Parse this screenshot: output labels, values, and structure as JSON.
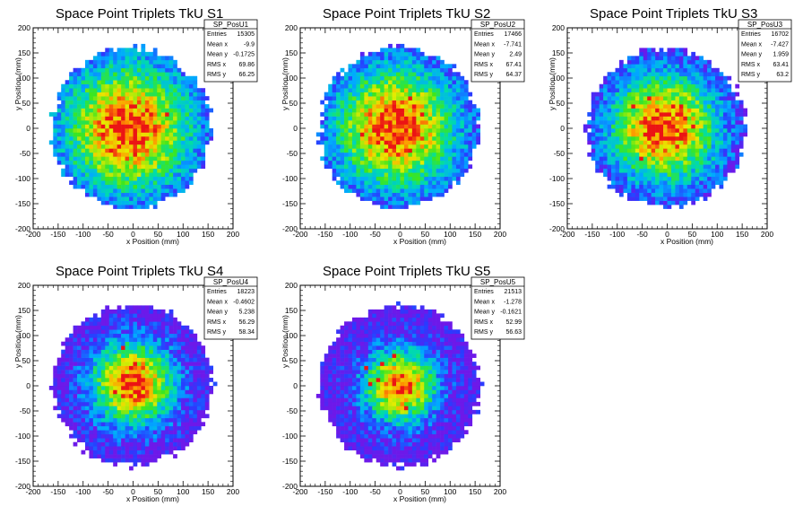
{
  "chart_data": [
    {
      "type": "heatmap",
      "id": "p1",
      "title": "Space Point Triplets TkU S1",
      "xlabel": "x Position (mm)",
      "ylabel": "y Position (mm)",
      "xlim": [
        -200,
        200
      ],
      "ylim": [
        -200,
        200
      ],
      "xticks": [
        -200,
        -150,
        -100,
        -50,
        0,
        50,
        100,
        150,
        200
      ],
      "yticks": [
        -200,
        -150,
        -100,
        -50,
        0,
        50,
        100,
        150,
        200
      ],
      "stats": {
        "name": "SP_PosU1",
        "rows": [
          [
            "Entries",
            "15305"
          ],
          [
            "Mean x",
            "-9.9"
          ],
          [
            "Mean y",
            "-0.1725"
          ],
          [
            "RMS x",
            "69.86"
          ],
          [
            "RMS y",
            "66.25"
          ]
        ]
      },
      "distribution": {
        "center_x": -10,
        "center_y": 0,
        "radius": 160,
        "sigma": 95
      },
      "grid": false,
      "colormap": "rainbow"
    },
    {
      "type": "heatmap",
      "id": "p2",
      "title": "Space Point Triplets TkU S2",
      "xlabel": "x Position (mm)",
      "ylabel": "y Position (mm)",
      "xlim": [
        -200,
        200
      ],
      "ylim": [
        -200,
        200
      ],
      "xticks": [
        -200,
        -150,
        -100,
        -50,
        0,
        50,
        100,
        150,
        200
      ],
      "yticks": [
        -200,
        -150,
        -100,
        -50,
        0,
        50,
        100,
        150,
        200
      ],
      "stats": {
        "name": "SP_PosU2",
        "rows": [
          [
            "Entries",
            "17466"
          ],
          [
            "Mean x",
            "-7.741"
          ],
          [
            "Mean y",
            "2.49"
          ],
          [
            "RMS x",
            "67.41"
          ],
          [
            "RMS y",
            "64.37"
          ]
        ]
      },
      "distribution": {
        "center_x": -8,
        "center_y": 2,
        "radius": 160,
        "sigma": 90
      },
      "grid": false,
      "colormap": "rainbow"
    },
    {
      "type": "heatmap",
      "id": "p3",
      "title": "Space Point Triplets TkU S3",
      "xlabel": "x Position (mm)",
      "ylabel": "y Position (mm)",
      "xlim": [
        -200,
        200
      ],
      "ylim": [
        -200,
        200
      ],
      "xticks": [
        -200,
        -150,
        -100,
        -50,
        0,
        50,
        100,
        150,
        200
      ],
      "yticks": [
        -200,
        -150,
        -100,
        -50,
        0,
        50,
        100,
        150,
        200
      ],
      "stats": {
        "name": "SP_PosU3",
        "rows": [
          [
            "Entries",
            "16702"
          ],
          [
            "Mean x",
            "-7.427"
          ],
          [
            "Mean y",
            "1.959"
          ],
          [
            "RMS x",
            "63.41"
          ],
          [
            "RMS y",
            "63.2"
          ]
        ]
      },
      "distribution": {
        "center_x": -7,
        "center_y": 2,
        "radius": 158,
        "sigma": 80
      },
      "grid": false,
      "colormap": "rainbow"
    },
    {
      "type": "heatmap",
      "id": "p4",
      "title": "Space Point Triplets TkU S4",
      "xlabel": "x Position (mm)",
      "ylabel": "y Position (mm)",
      "xlim": [
        -200,
        200
      ],
      "ylim": [
        -200,
        200
      ],
      "xticks": [
        -200,
        -150,
        -100,
        -50,
        0,
        50,
        100,
        150,
        200
      ],
      "yticks": [
        -200,
        -150,
        -100,
        -50,
        0,
        50,
        100,
        150,
        200
      ],
      "stats": {
        "name": "SP_PosU4",
        "rows": [
          [
            "Entries",
            "18223"
          ],
          [
            "Mean x",
            "-0.4602"
          ],
          [
            "Mean y",
            "5.238"
          ],
          [
            "RMS x",
            "56.29"
          ],
          [
            "RMS y",
            "58.34"
          ]
        ]
      },
      "distribution": {
        "center_x": 0,
        "center_y": 5,
        "radius": 160,
        "sigma": 60
      },
      "grid": false,
      "colormap": "rainbow"
    },
    {
      "type": "heatmap",
      "id": "p5",
      "title": "Space Point Triplets TkU S5",
      "xlabel": "x Position (mm)",
      "ylabel": "y Position (mm)",
      "xlim": [
        -200,
        200
      ],
      "ylim": [
        -200,
        200
      ],
      "xticks": [
        -200,
        -150,
        -100,
        -50,
        0,
        50,
        100,
        150,
        200
      ],
      "yticks": [
        -200,
        -150,
        -100,
        -50,
        0,
        50,
        100,
        150,
        200
      ],
      "stats": {
        "name": "SP_PosU5",
        "rows": [
          [
            "Entries",
            "21513"
          ],
          [
            "Mean x",
            "-1.278"
          ],
          [
            "Mean y",
            "-0.1621"
          ],
          [
            "RMS x",
            "52.99"
          ],
          [
            "RMS y",
            "56.63"
          ]
        ]
      },
      "distribution": {
        "center_x": 0,
        "center_y": 0,
        "radius": 160,
        "sigma": 52
      },
      "grid": false,
      "colormap": "rainbow"
    }
  ]
}
